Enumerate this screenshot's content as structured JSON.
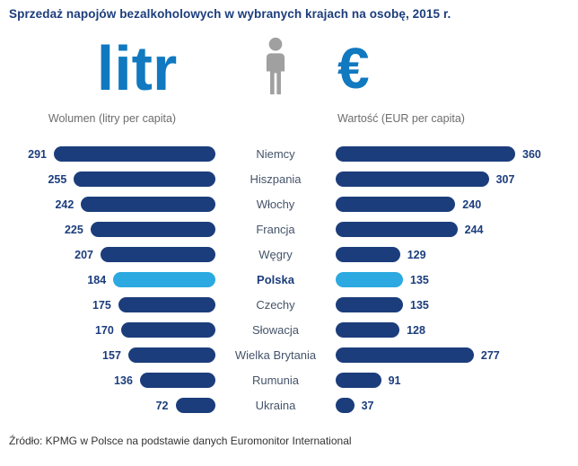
{
  "header": {
    "left_unit": "litr",
    "right_unit": "€",
    "left_label": "Wolumen (litry per capita)",
    "right_label": "Wartość (EUR per capita)"
  },
  "source": "Źródło: KPMG w Polsce na podstawie danych Euromonitor International",
  "colors": {
    "navy": "#1c3d7c",
    "light_blue": "#2ba9e0",
    "azure": "#1079c0",
    "gray_label": "#6d6d6d",
    "country_text": "#45546a",
    "icon_gray": "#a0a0a0",
    "footer_text": "#333333"
  },
  "chart_data": {
    "type": "bar",
    "orientation": "horizontal",
    "layout": "bilateral",
    "title": "Sprzedaż napojów bezalkoholowych w wybranych krajach na osobę, 2015 r.",
    "categories": [
      "Niemcy",
      "Hiszpania",
      "Włochy",
      "Francja",
      "Węgry",
      "Polska",
      "Czechy",
      "Słowacja",
      "Wielka Brytania",
      "Rumunia",
      "Ukraina"
    ],
    "series": [
      {
        "name": "Wolumen (litry per capita)",
        "side": "left",
        "values": [
          291,
          255,
          242,
          225,
          207,
          184,
          175,
          170,
          157,
          136,
          72
        ]
      },
      {
        "name": "Wartość (EUR per capita)",
        "side": "right",
        "values": [
          360,
          307,
          240,
          244,
          129,
          135,
          135,
          128,
          277,
          91,
          37
        ]
      }
    ],
    "highlight_category": "Polska",
    "bar_color": "#1c3d7c",
    "highlight_color": "#2ba9e0",
    "value_labels": true,
    "grid": false,
    "legend": false
  }
}
